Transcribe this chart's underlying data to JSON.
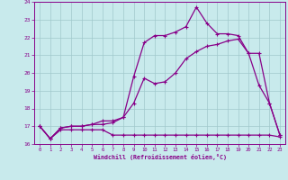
{
  "xlabel": "Windchill (Refroidissement éolien,°C)",
  "x": [
    0,
    1,
    2,
    3,
    4,
    5,
    6,
    7,
    8,
    9,
    10,
    11,
    12,
    13,
    14,
    15,
    16,
    17,
    18,
    19,
    20,
    21,
    22,
    23
  ],
  "line1": [
    17.0,
    16.3,
    16.8,
    16.8,
    16.8,
    16.8,
    16.8,
    16.5,
    16.5,
    16.5,
    16.5,
    16.5,
    16.5,
    16.5,
    16.5,
    16.5,
    16.5,
    16.5,
    16.5,
    16.5,
    16.5,
    16.5,
    16.5,
    16.4
  ],
  "line2": [
    17.0,
    16.3,
    16.9,
    17.0,
    17.0,
    17.1,
    17.1,
    17.2,
    17.5,
    18.3,
    19.7,
    19.4,
    19.5,
    20.0,
    20.8,
    21.2,
    21.5,
    21.6,
    21.8,
    21.9,
    21.1,
    19.3,
    18.3,
    16.5
  ],
  "line3": [
    17.0,
    16.3,
    16.9,
    17.0,
    17.0,
    17.1,
    17.3,
    17.3,
    17.5,
    19.8,
    21.7,
    22.1,
    22.1,
    22.3,
    22.6,
    23.7,
    22.8,
    22.2,
    22.2,
    22.1,
    21.1,
    21.1,
    18.3,
    16.5
  ],
  "color": "#880088",
  "bg_color": "#c8eaec",
  "grid_color": "#a0c8cc",
  "ylim": [
    16,
    24
  ],
  "xlim": [
    -0.5,
    23.5
  ],
  "yticks": [
    16,
    17,
    18,
    19,
    20,
    21,
    22,
    23,
    24
  ],
  "xticks": [
    0,
    1,
    2,
    3,
    4,
    5,
    6,
    7,
    8,
    9,
    10,
    11,
    12,
    13,
    14,
    15,
    16,
    17,
    18,
    19,
    20,
    21,
    22,
    23
  ]
}
